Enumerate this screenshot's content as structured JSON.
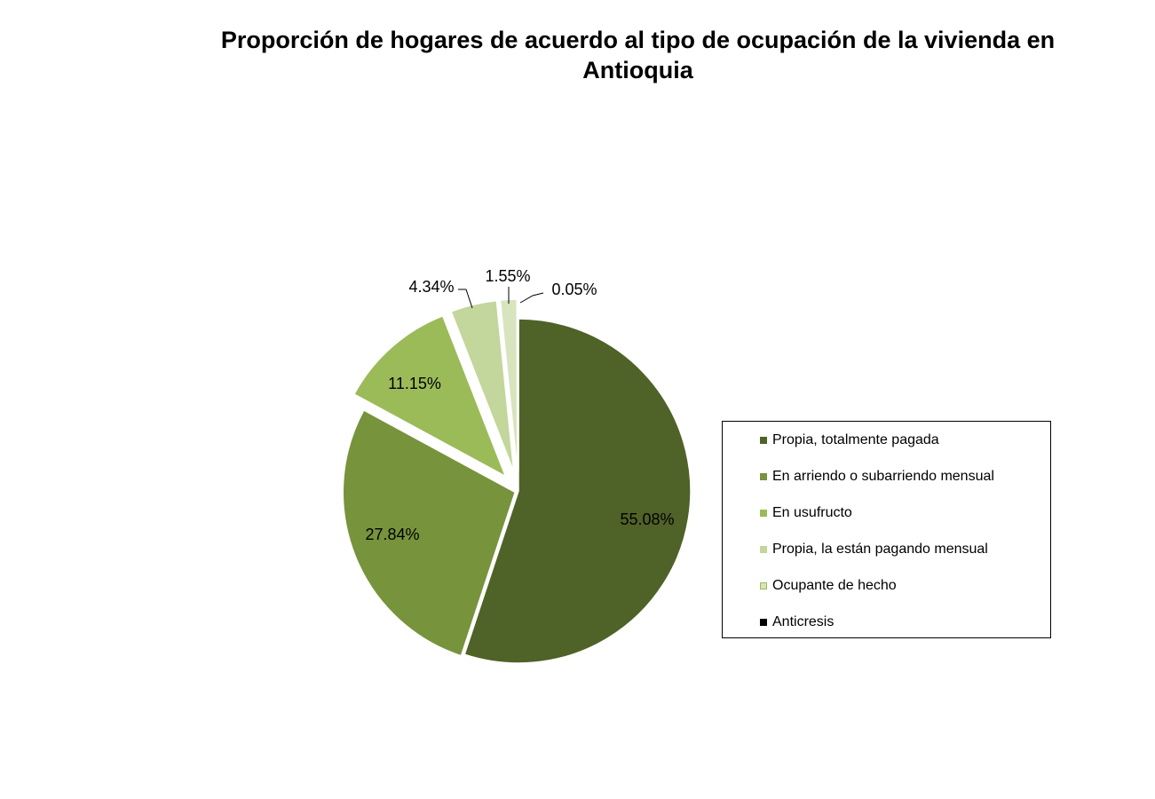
{
  "chart_data": {
    "type": "pie",
    "title_line1": "Proporción de hogares de acuerdo al tipo de ocupación de la vivienda en",
    "title_line2": "Antioquia",
    "slices": [
      {
        "name": "Propia, totalmente pagada",
        "value": 55.08,
        "label": "55.08%",
        "color": "#4f6228"
      },
      {
        "name": "En arriendo o subarriendo mensual",
        "value": 27.84,
        "label": "27.84%",
        "color": "#77933c"
      },
      {
        "name": "En usufructo",
        "value": 11.15,
        "label": "11.15%",
        "color": "#9bbb59"
      },
      {
        "name": "Propia, la están pagando mensual",
        "value": 4.34,
        "label": "4.34%",
        "color": "#c3d69b"
      },
      {
        "name": "Ocupante de hecho",
        "value": 1.55,
        "label": "1.55%",
        "color": "#d7e4bd"
      },
      {
        "name": "Anticresis",
        "value": 0.05,
        "label": "0.05%",
        "color": "#000000"
      }
    ],
    "legend_position": "right"
  }
}
